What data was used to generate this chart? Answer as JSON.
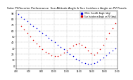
{
  "title": "Solar PV/Inverter Performance  Sun Altitude Angle & Sun Incidence Angle on PV Panels",
  "title_fontsize": 2.8,
  "background_color": "#ffffff",
  "grid_color": "#bbbbbb",
  "blue_label": "HOriz. Sun Alt. Angle (deg)",
  "red_label": "Sun Incidence Angle on PV (deg)",
  "ylim": [
    -5,
    95
  ],
  "xlim": [
    0,
    1
  ],
  "blue_color": "#0000dd",
  "red_color": "#dd0000",
  "blue_x": [
    0.02,
    0.05,
    0.08,
    0.11,
    0.14,
    0.17,
    0.2,
    0.23,
    0.26,
    0.29,
    0.32,
    0.35,
    0.38,
    0.41,
    0.44,
    0.47,
    0.5,
    0.53,
    0.56,
    0.59,
    0.62,
    0.65,
    0.68,
    0.71,
    0.74,
    0.77,
    0.8,
    0.83,
    0.86,
    0.89,
    0.92,
    0.95,
    0.98
  ],
  "blue_y": [
    88,
    84,
    80,
    76,
    72,
    68,
    64,
    60,
    56,
    52,
    48,
    44,
    40,
    36,
    32,
    28,
    24,
    20,
    16,
    12,
    9,
    6,
    4,
    3,
    3,
    5,
    7,
    10,
    14,
    18,
    22,
    26,
    30
  ],
  "red_x": [
    0.05,
    0.08,
    0.11,
    0.14,
    0.17,
    0.2,
    0.23,
    0.26,
    0.29,
    0.32,
    0.35,
    0.38,
    0.41,
    0.44,
    0.47,
    0.5,
    0.53,
    0.56,
    0.59,
    0.62,
    0.65,
    0.68,
    0.71,
    0.74,
    0.77,
    0.8,
    0.83,
    0.86,
    0.89,
    0.92,
    0.95,
    0.98
  ],
  "red_y": [
    68,
    62,
    56,
    50,
    44,
    38,
    33,
    28,
    24,
    21,
    18,
    17,
    17,
    19,
    22,
    26,
    30,
    34,
    37,
    38,
    36,
    32,
    26,
    21,
    19,
    22,
    28,
    36,
    46,
    56,
    65,
    73
  ],
  "yticks": [
    0,
    10,
    20,
    30,
    40,
    50,
    60,
    70,
    80,
    90
  ],
  "xtick_labels": [
    "4:00",
    "6:00",
    "8:00",
    "10:00",
    "12:00",
    "14:00",
    "16:00",
    "18:00",
    "20:00"
  ],
  "xtick_positions": [
    0.0,
    0.125,
    0.25,
    0.375,
    0.5,
    0.625,
    0.75,
    0.875,
    1.0
  ]
}
